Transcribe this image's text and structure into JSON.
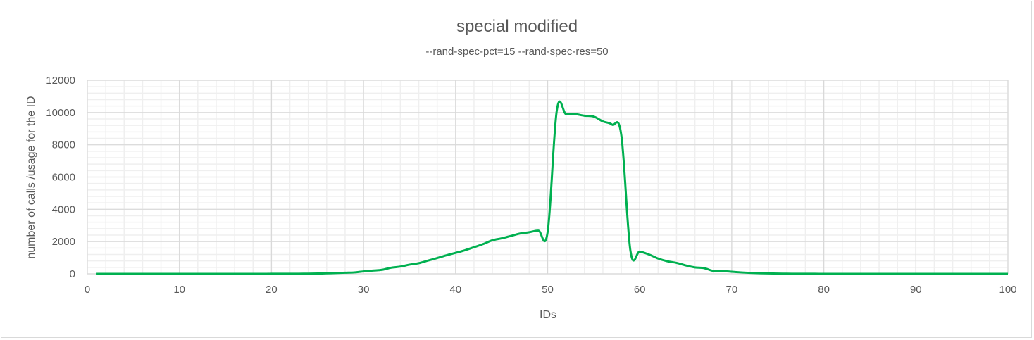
{
  "chart_data": {
    "type": "line",
    "title": "special modified",
    "subtitle": "--rand-spec-pct=15 --rand-spec-res=50",
    "xlabel": "IDs",
    "ylabel": "number of calls /usage for the ID",
    "xlim": [
      0,
      100
    ],
    "ylim": [
      0,
      12000
    ],
    "xticks": [
      0,
      10,
      20,
      30,
      40,
      50,
      60,
      70,
      80,
      90,
      100
    ],
    "yticks": [
      0,
      2000,
      4000,
      6000,
      8000,
      10000,
      12000
    ],
    "grid": true,
    "line_color": "#00b050",
    "series": [
      {
        "x": [
          1,
          2,
          3,
          4,
          5,
          6,
          7,
          8,
          9,
          10,
          11,
          12,
          13,
          14,
          15,
          16,
          17,
          18,
          19,
          20,
          21,
          22,
          23,
          24,
          25,
          26,
          27,
          28,
          29,
          30,
          31,
          32,
          33,
          34,
          35,
          36,
          37,
          38,
          39,
          40,
          41,
          42,
          43,
          44,
          45,
          46,
          47,
          48,
          49,
          50,
          51,
          52,
          53,
          54,
          55,
          56,
          57,
          58,
          59,
          60,
          61,
          62,
          63,
          64,
          65,
          66,
          67,
          68,
          69,
          70,
          71,
          72,
          73,
          74,
          75,
          76,
          77,
          78,
          79,
          80,
          81,
          82,
          83,
          84,
          85,
          86,
          87,
          88,
          89,
          90,
          91,
          92,
          93,
          94,
          95,
          96,
          97,
          98,
          99,
          100
        ],
        "values": [
          0,
          0,
          0,
          0,
          0,
          0,
          0,
          0,
          0,
          0,
          0,
          0,
          0,
          0,
          0,
          0,
          0,
          1,
          2,
          3,
          4,
          6,
          8,
          12,
          20,
          30,
          50,
          70,
          90,
          150,
          200,
          250,
          380,
          450,
          570,
          660,
          820,
          980,
          1150,
          1300,
          1460,
          1650,
          1850,
          2080,
          2200,
          2350,
          2500,
          2580,
          2680,
          2600,
          10150,
          9900,
          9900,
          9800,
          9750,
          9450,
          9250,
          8600,
          1400,
          1380,
          1200,
          950,
          780,
          680,
          520,
          400,
          350,
          180,
          170,
          130,
          90,
          60,
          40,
          25,
          15,
          10,
          6,
          4,
          3,
          2,
          1,
          1,
          0,
          0,
          0,
          0,
          0,
          0,
          0,
          0,
          0,
          0,
          0,
          0,
          0,
          0,
          0,
          0,
          0,
          0
        ]
      }
    ]
  }
}
